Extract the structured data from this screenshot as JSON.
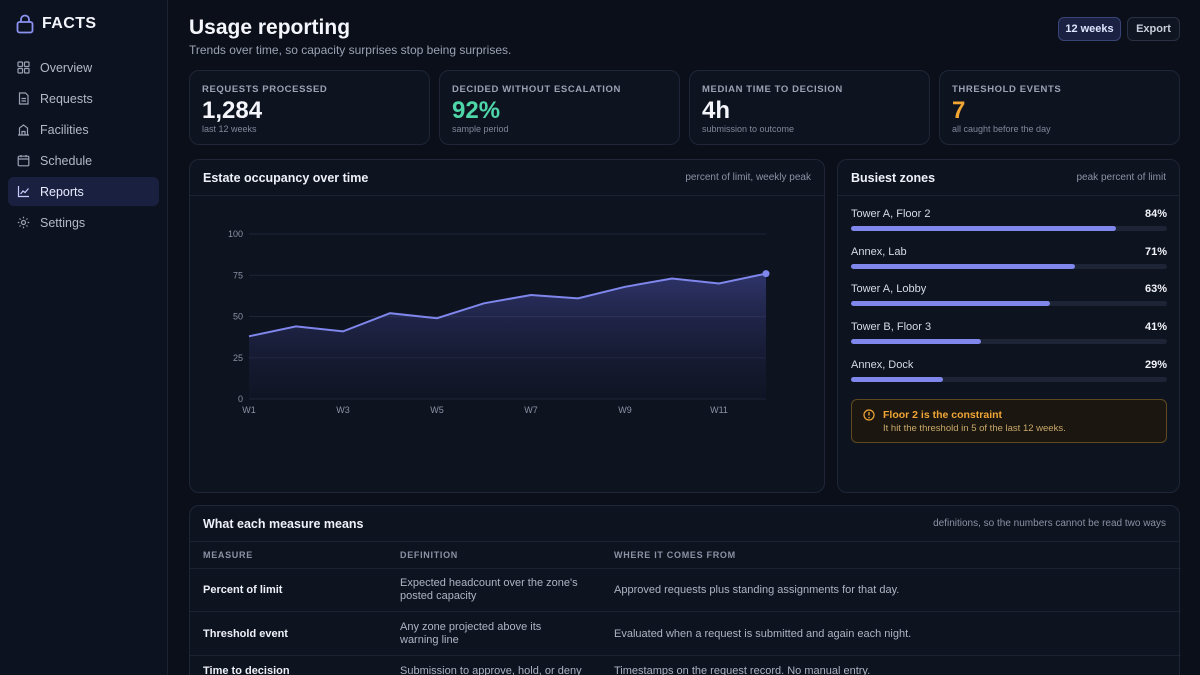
{
  "app": {
    "name": "FACTS"
  },
  "nav": [
    {
      "label": "Overview",
      "icon": "grid-icon",
      "active": false
    },
    {
      "label": "Requests",
      "icon": "document-icon",
      "active": false
    },
    {
      "label": "Facilities",
      "icon": "building-icon",
      "active": false
    },
    {
      "label": "Schedule",
      "icon": "calendar-icon",
      "active": false
    },
    {
      "label": "Reports",
      "icon": "chart-icon",
      "active": true
    },
    {
      "label": "Settings",
      "icon": "gear-icon",
      "active": false
    }
  ],
  "header": {
    "title": "Usage reporting",
    "subtitle": "Trends over time, so capacity surprises stop being surprises.",
    "range_label": "12 weeks",
    "export_label": "Export"
  },
  "kpis": [
    {
      "label": "Requests processed",
      "value": "1,284",
      "note": "last 12 weeks",
      "color": "#f4f6fb"
    },
    {
      "label": "Decided without escalation",
      "value": "92%",
      "note": "sample period",
      "color": "#4fd6a8"
    },
    {
      "label": "Median time to decision",
      "value": "4h",
      "note": "submission to outcome",
      "color": "#f4f6fb"
    },
    {
      "label": "Threshold events",
      "value": "7",
      "note": "all caught before the day",
      "color": "#f0a535"
    }
  ],
  "occupancy": {
    "title": "Estate occupancy over time",
    "hint": "percent of limit, weekly peak"
  },
  "chart_data": {
    "type": "area",
    "x": [
      "W1",
      "W2",
      "W3",
      "W4",
      "W5",
      "W6",
      "W7",
      "W8",
      "W9",
      "W10",
      "W11",
      "W12"
    ],
    "x_tick_labels": [
      "W1",
      "W3",
      "W5",
      "W7",
      "W9",
      "W11"
    ],
    "y_ticks": [
      0,
      25,
      50,
      75,
      100
    ],
    "series": [
      {
        "values": [
          38,
          44,
          41,
          52,
          49,
          58,
          63,
          61,
          68,
          73,
          70,
          76
        ]
      }
    ],
    "ylim": [
      0,
      100
    ],
    "line_color": "#7f86ec",
    "grid": true
  },
  "zones": {
    "title": "Busiest zones",
    "hint": "peak percent of limit",
    "items": [
      {
        "name": "Tower A, Floor 2",
        "pct_label": "84%",
        "value": 84
      },
      {
        "name": "Annex, Lab",
        "pct_label": "71%",
        "value": 71
      },
      {
        "name": "Tower A, Lobby",
        "pct_label": "63%",
        "value": 63
      },
      {
        "name": "Tower B, Floor 3",
        "pct_label": "41%",
        "value": 41
      },
      {
        "name": "Annex, Dock",
        "pct_label": "29%",
        "value": 29
      }
    ],
    "alert": {
      "title": "Floor 2 is the constraint",
      "text": "It hit the threshold in 5 of the last 12 weeks."
    }
  },
  "definitions": {
    "title": "What each measure means",
    "hint": "definitions, so the numbers cannot be read two ways",
    "columns": [
      "Measure",
      "Definition",
      "Where it comes from"
    ],
    "rows": [
      {
        "measure": "Percent of limit",
        "definition": "Expected headcount over the zone's posted capacity",
        "source": "Approved requests plus standing assignments for that day."
      },
      {
        "measure": "Threshold event",
        "definition": "Any zone projected above its warning line",
        "source": "Evaluated when a request is submitted and again each night."
      },
      {
        "measure": "Time to decision",
        "definition": "Submission to approve, hold, or deny",
        "source": "Timestamps on the request record. No manual entry."
      }
    ]
  }
}
